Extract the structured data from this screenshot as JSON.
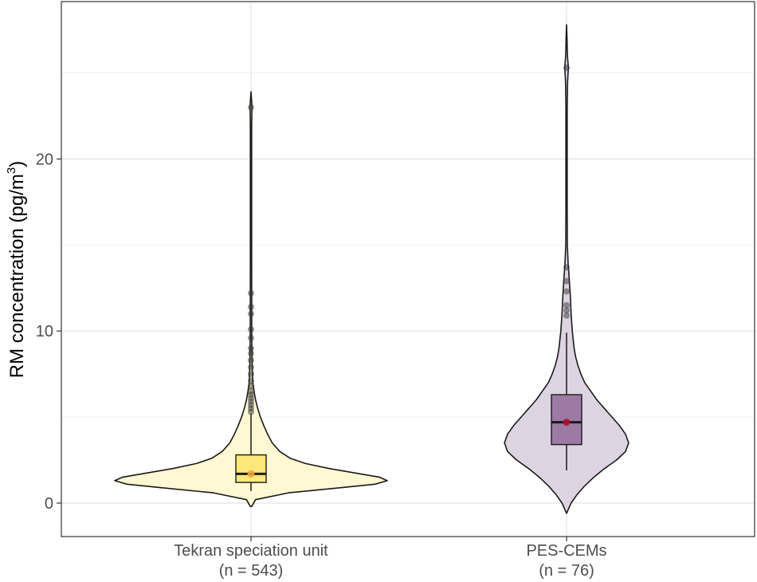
{
  "chart_data": {
    "type": "violin",
    "title": "",
    "ylabel_main": "RM concentration (pg/m",
    "ylabel_sup": "3",
    "ylabel_close": ")",
    "xlabel": "",
    "ylim": [
      -2,
      29
    ],
    "yticks": [
      0,
      10,
      20
    ],
    "grid": true,
    "categories": [
      {
        "name": "Tekran speciation unit",
        "n_label": "(n = 543)",
        "violin_fill": "#fff8d2",
        "box_fill": "#fbe77a",
        "mean_color": "#f0a33c",
        "whisker_min": 0.7,
        "q1": 1.2,
        "median": 1.7,
        "q3": 2.8,
        "whisker_max": 5.2,
        "mean": 1.7,
        "violin_min": -0.2,
        "violin_max": 23.9,
        "density": [
          [
            -0.2,
            0.004
          ],
          [
            0.2,
            0.03
          ],
          [
            0.6,
            0.25
          ],
          [
            0.9,
            0.6
          ],
          [
            1.1,
            0.82
          ],
          [
            1.3,
            0.9
          ],
          [
            1.5,
            0.85
          ],
          [
            1.7,
            0.72
          ],
          [
            2.0,
            0.52
          ],
          [
            2.3,
            0.36
          ],
          [
            2.6,
            0.26
          ],
          [
            3.0,
            0.19
          ],
          [
            3.5,
            0.14
          ],
          [
            4.0,
            0.11
          ],
          [
            4.5,
            0.085
          ],
          [
            5.0,
            0.062
          ],
          [
            5.5,
            0.044
          ],
          [
            6.0,
            0.03
          ],
          [
            6.5,
            0.02
          ],
          [
            7.0,
            0.012
          ],
          [
            8.0,
            0.008
          ],
          [
            9.0,
            0.006
          ],
          [
            10.0,
            0.005
          ],
          [
            12.0,
            0.005
          ],
          [
            14.0,
            0.004
          ],
          [
            16.0,
            0.004
          ],
          [
            18.0,
            0.004
          ],
          [
            20.0,
            0.004
          ],
          [
            22.0,
            0.004
          ],
          [
            22.8,
            0.006
          ],
          [
            23.0,
            0.007
          ],
          [
            23.3,
            0.005
          ],
          [
            23.9,
            0.0
          ]
        ],
        "outliers": [
          5.3,
          5.5,
          5.7,
          5.9,
          6.1,
          6.3,
          6.5,
          6.8,
          7.1,
          7.5,
          7.9,
          8.3,
          8.7,
          9.0,
          9.6,
          10.1,
          11.0,
          11.4,
          12.2,
          23.0
        ]
      },
      {
        "name": "PES-CEMs",
        "n_label": "(n = 76)",
        "violin_fill": "#ddd4e2",
        "box_fill": "#9c7aa3",
        "mean_color": "#b0102e",
        "whisker_min": 1.9,
        "q1": 3.4,
        "median": 4.7,
        "q3": 6.3,
        "whisker_max": 9.9,
        "mean": 4.7,
        "violin_min": -0.6,
        "violin_max": 27.8,
        "density": [
          [
            -0.6,
            0.0
          ],
          [
            0.0,
            0.03
          ],
          [
            0.5,
            0.07
          ],
          [
            1.0,
            0.12
          ],
          [
            1.5,
            0.18
          ],
          [
            2.0,
            0.25
          ],
          [
            2.5,
            0.33
          ],
          [
            3.0,
            0.39
          ],
          [
            3.5,
            0.41
          ],
          [
            4.0,
            0.39
          ],
          [
            4.5,
            0.35
          ],
          [
            5.0,
            0.3
          ],
          [
            5.5,
            0.25
          ],
          [
            6.0,
            0.2
          ],
          [
            6.5,
            0.16
          ],
          [
            7.0,
            0.12
          ],
          [
            7.5,
            0.095
          ],
          [
            8.0,
            0.075
          ],
          [
            8.5,
            0.06
          ],
          [
            9.0,
            0.05
          ],
          [
            10.0,
            0.038
          ],
          [
            11.0,
            0.03
          ],
          [
            12.0,
            0.025
          ],
          [
            13.0,
            0.018
          ],
          [
            14.0,
            0.01
          ],
          [
            15.0,
            0.005
          ],
          [
            17.0,
            0.004
          ],
          [
            19.0,
            0.004
          ],
          [
            21.0,
            0.004
          ],
          [
            23.0,
            0.004
          ],
          [
            24.5,
            0.007
          ],
          [
            25.3,
            0.012
          ],
          [
            26.0,
            0.006
          ],
          [
            27.0,
            0.003
          ],
          [
            27.8,
            0.0
          ]
        ],
        "outliers": [
          10.9,
          11.2,
          11.5,
          12.3,
          12.9,
          13.7,
          25.3
        ]
      }
    ]
  }
}
